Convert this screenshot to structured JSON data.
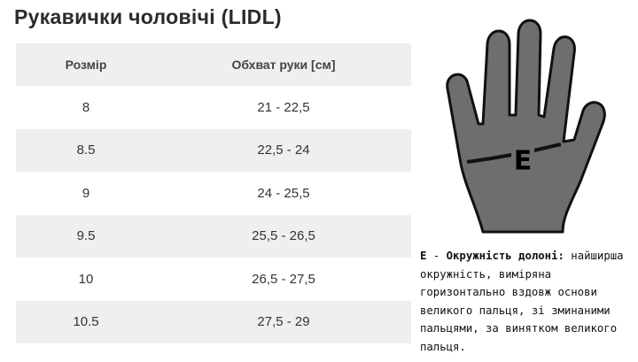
{
  "header": {
    "title": "Рукавички чоловічі (LIDL)"
  },
  "table": {
    "columns": [
      "Розмір",
      "Обхват руки [см]"
    ],
    "rows": [
      [
        "8",
        "21 - 22,5"
      ],
      [
        "8.5",
        "22,5 - 24"
      ],
      [
        "9",
        "24 - 25,5"
      ],
      [
        "9.5",
        "25,5 - 26,5"
      ],
      [
        "10",
        "26,5 - 27,5"
      ],
      [
        "10.5",
        "27,5 - 29"
      ]
    ]
  },
  "hand": {
    "label": "E"
  },
  "caption": {
    "letter": "E",
    "dash": "-",
    "heading": "Окружність долоні:",
    "body": "найширша окружність, виміряна горизонтально вздовж основи великого пальця, зі зминаними пальцями, за винятком великого пальця."
  }
}
